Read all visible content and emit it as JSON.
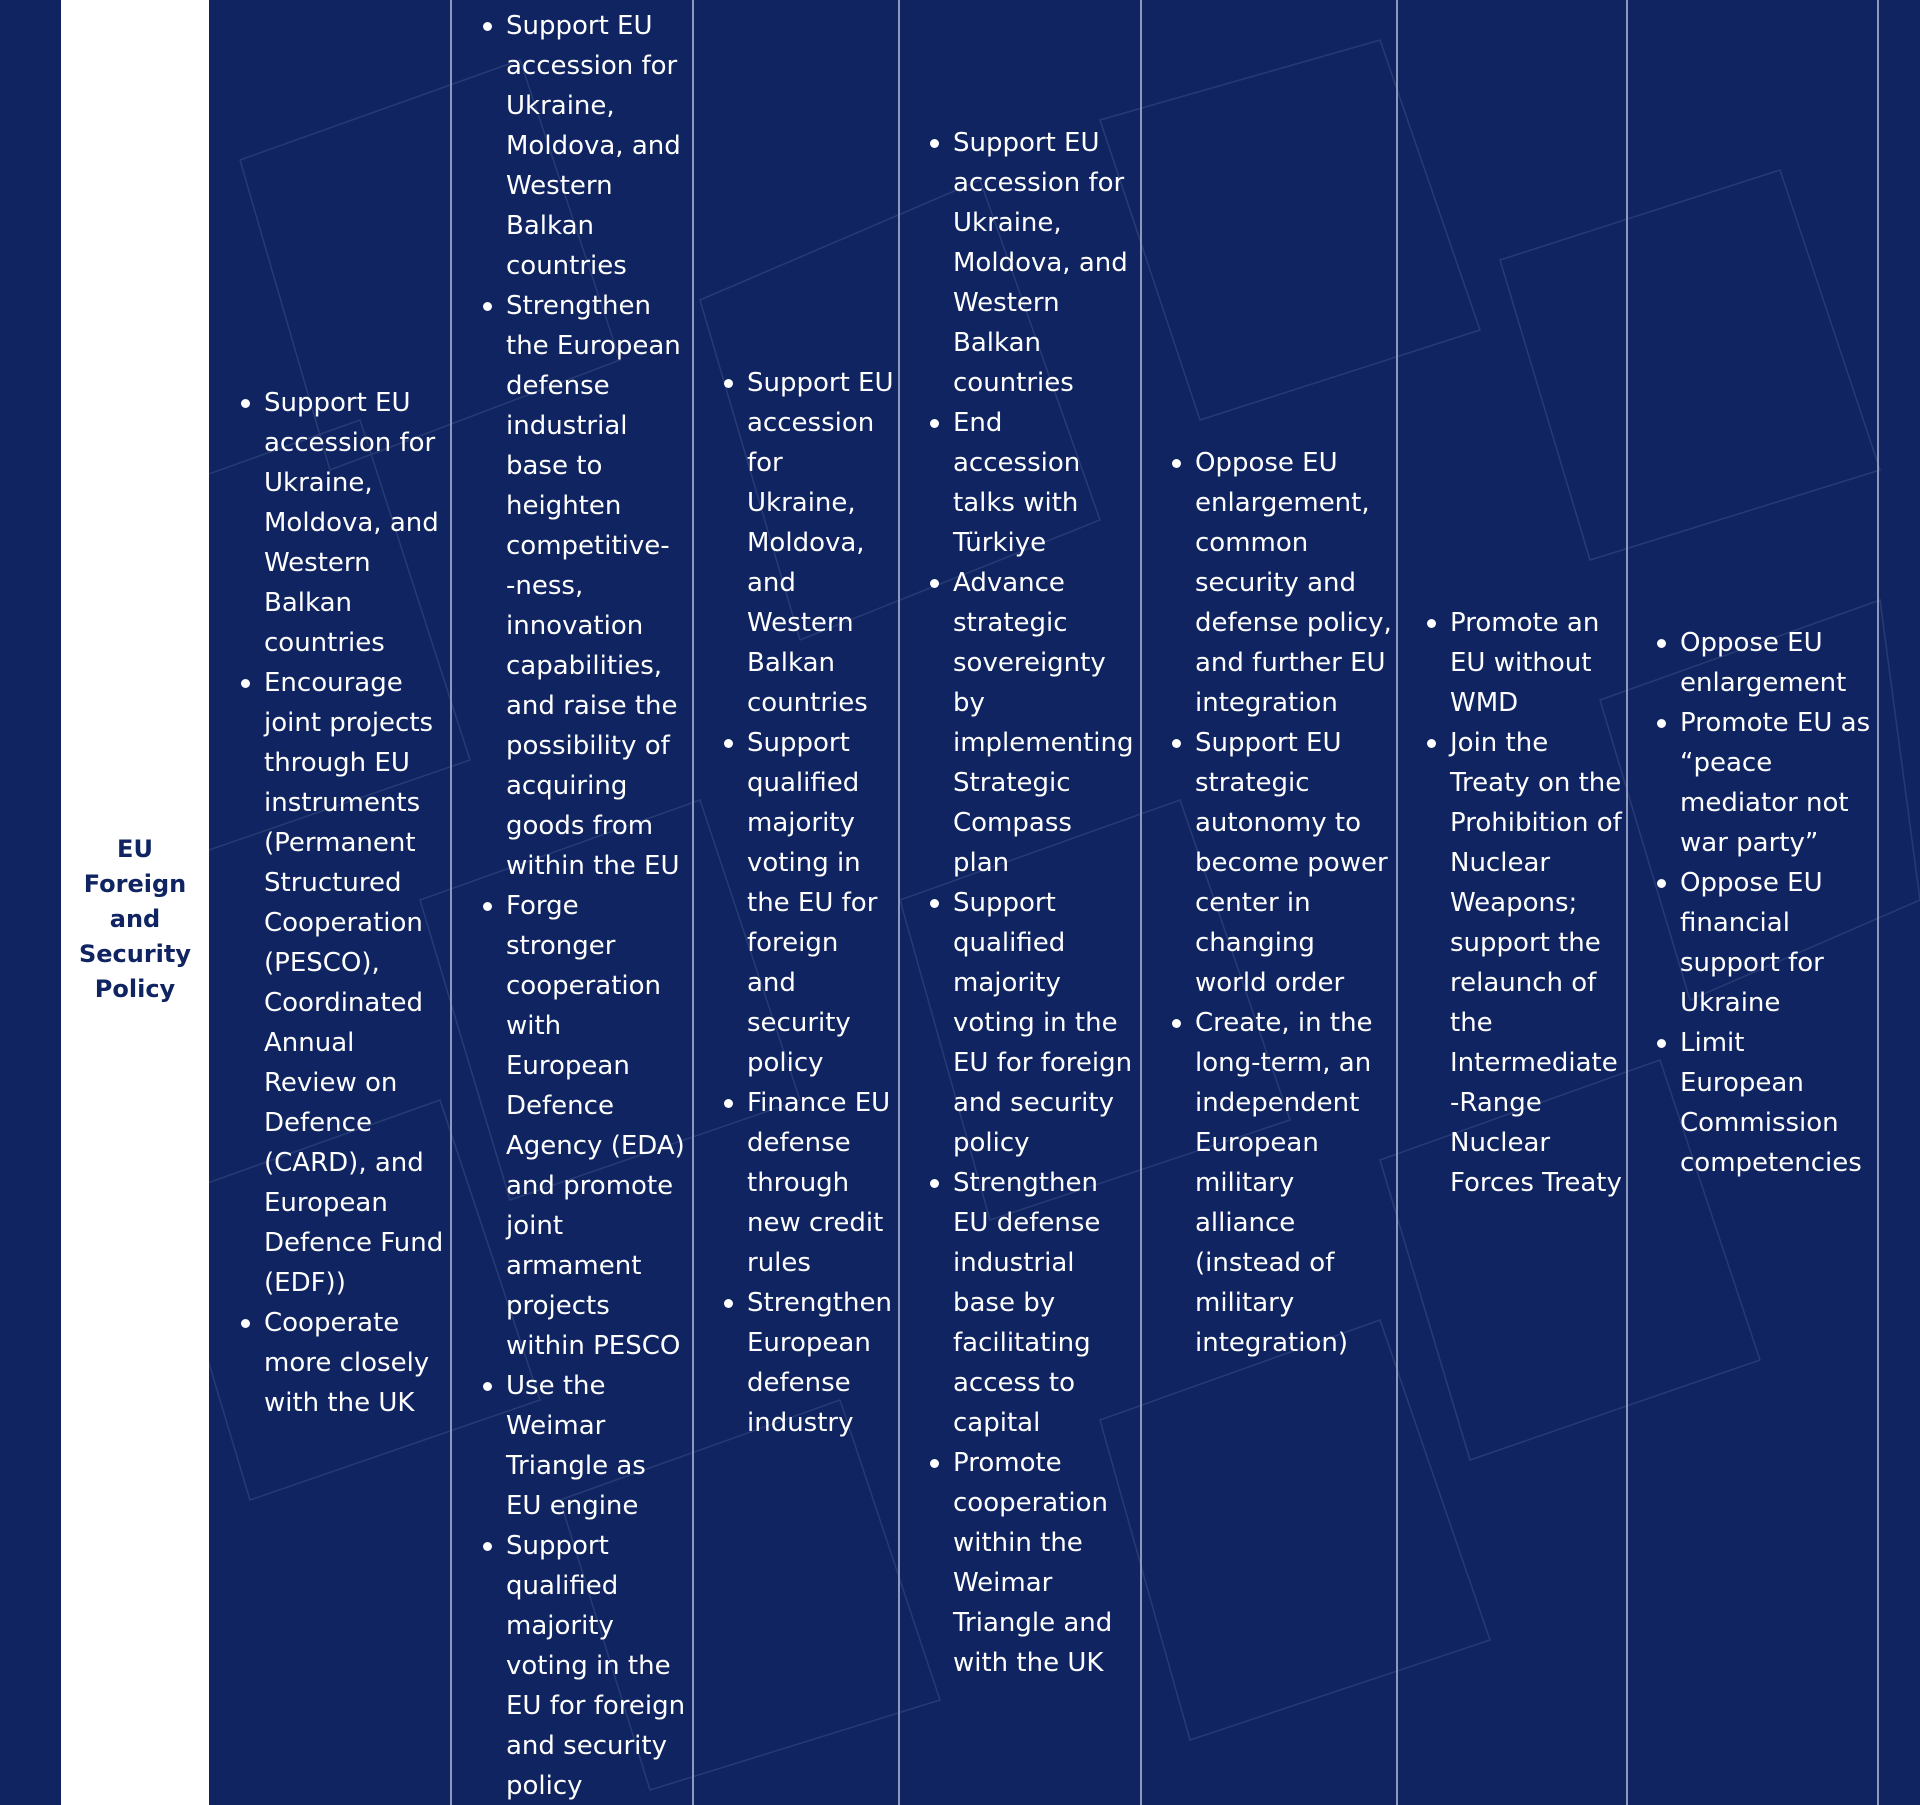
{
  "row_label": "EU Foreign and Security Policy",
  "columns": [
    {
      "items": [
        "Support EU accession for Ukraine, Moldova, and Western Balkan countries",
        "Encourage joint projects through EU instruments (Permanent Structured Cooperation (PESCO), Coordinated Annual Review on Defence (CARD), and European Defence Fund (EDF))",
        "Cooperate more closely with the UK"
      ]
    },
    {
      "items": [
        "Support EU accession for Ukraine, Moldova, and Western Balkan countries",
        "Strengthen the European defense industrial base to heighten competitive- -ness, innovation capabilities, and raise the possibility of acquiring goods from within the EU",
        "Forge stronger cooperation with European Defence Agency (EDA) and promote joint armament projects within PESCO",
        "Use the Weimar Triangle as EU engine",
        "Support qualified majority voting in the EU for foreign and security policy"
      ]
    },
    {
      "items": [
        "Support EU accession for Ukraine, Moldova, and Western Balkan countries",
        "Support qualified majority voting in the EU for foreign and security policy",
        "Finance EU defense through new credit rules",
        "Strengthen European defense industry"
      ]
    },
    {
      "items": [
        "Support EU accession for Ukraine, Moldova, and Western Balkan countries",
        "End accession talks with Türkiye",
        "Advance strategic sovereignty by implementing Strategic Compass plan",
        "Support qualified majority voting in the EU for foreign and security policy",
        "Strengthen EU defense industrial base by facilitating access to capital",
        "Promote cooperation within the Weimar Triangle and with the UK"
      ]
    },
    {
      "items": [
        "Oppose EU enlargement, common security and defense policy, and further EU integration",
        "Support EU strategic autonomy to become power center in changing world order",
        "Create, in the long-term, an independent European military alliance (instead of military integration)"
      ]
    },
    {
      "items": [
        "Promote an EU without WMD",
        "Join the Treaty on the Prohibition of Nuclear Weapons; support the relaunch of the Intermediate -Range Nuclear Forces Treaty"
      ]
    },
    {
      "items": [
        "Oppose EU enlargement",
        "Promote EU as “peace mediator not war party”",
        "Oppose EU financial support for Ukraine",
        "Limit European Commission competencies"
      ]
    }
  ]
}
